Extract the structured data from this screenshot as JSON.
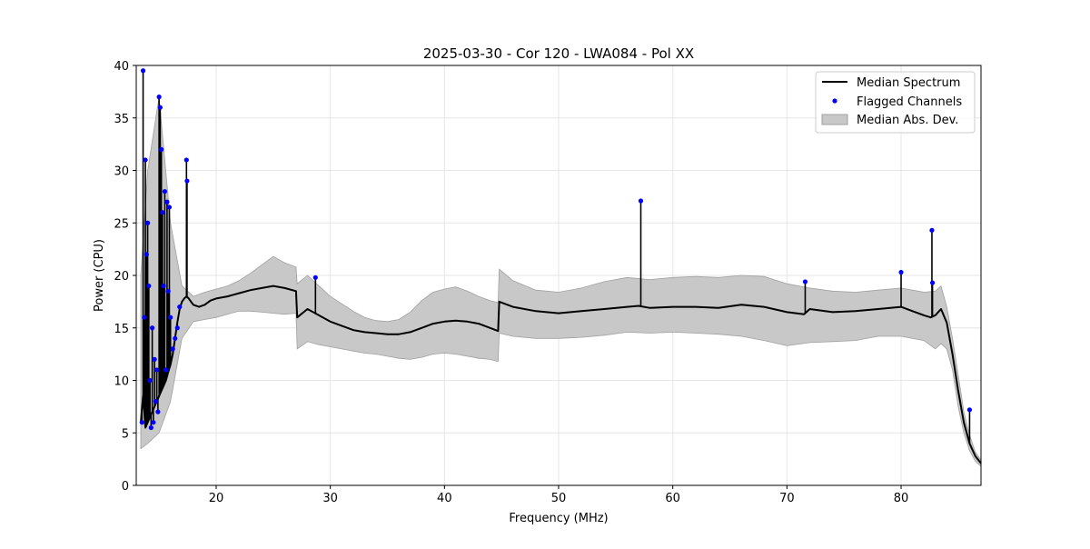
{
  "chart_data": {
    "type": "line",
    "title": "2025-03-30 - Cor 120 - LWA084 - Pol XX",
    "xlabel": "Frequency (MHz)",
    "ylabel": "Power (CPU)",
    "xlim": [
      13,
      87
    ],
    "ylim": [
      0,
      40
    ],
    "x_ticks": [
      20,
      30,
      40,
      50,
      60,
      70,
      80
    ],
    "y_ticks": [
      0,
      5,
      10,
      15,
      20,
      25,
      30,
      35,
      40
    ],
    "grid": true,
    "legend": {
      "placement": "top-right",
      "entries": [
        "Median Spectrum",
        "Flagged Channels",
        "Median Abs. Dev."
      ]
    },
    "colors": {
      "median": "#000000",
      "flagged": "#0000ff",
      "mad_fill": "#c8c8c8",
      "mad_edge": "#a0a0a0"
    },
    "series": [
      {
        "name": "Median Spectrum",
        "x": [
          13.4,
          13.6,
          13.8,
          14.0,
          14.2,
          14.4,
          14.6,
          14.8,
          15.0,
          15.2,
          15.4,
          15.6,
          15.8,
          16.0,
          16.2,
          16.4,
          16.6,
          16.8,
          17.0,
          17.2,
          17.4,
          17.6,
          17.8,
          18.0,
          18.5,
          19.0,
          19.5,
          20.0,
          21.0,
          22.0,
          23.0,
          24.0,
          25.0,
          26.0,
          27.0,
          27.1,
          28.0,
          29.0,
          30.0,
          31.0,
          32.0,
          33.0,
          34.0,
          35.0,
          36.0,
          37.0,
          38.0,
          39.0,
          40.0,
          41.0,
          42.0,
          43.0,
          44.0,
          44.7,
          44.8,
          46.0,
          48.0,
          50.0,
          52.0,
          54.0,
          56.0,
          57.0,
          58.0,
          60.0,
          62.0,
          64.0,
          66.0,
          68.0,
          70.0,
          71.5,
          72.0,
          74.0,
          76.0,
          78.0,
          80.0,
          81.0,
          82.0,
          82.6,
          83.0,
          83.5,
          84.0,
          84.5,
          85.0,
          85.5,
          86.0,
          86.5,
          87.0
        ],
        "values": [
          6.0,
          8.5,
          5.5,
          6.0,
          6.5,
          7.0,
          7.5,
          8.0,
          8.5,
          9.0,
          9.5,
          10.0,
          10.8,
          11.5,
          12.5,
          14.0,
          15.5,
          16.8,
          17.5,
          17.8,
          18.0,
          17.8,
          17.5,
          17.2,
          17.0,
          17.2,
          17.6,
          17.8,
          18.0,
          18.3,
          18.6,
          18.8,
          19.0,
          18.8,
          18.5,
          16.0,
          16.8,
          16.2,
          15.6,
          15.2,
          14.8,
          14.6,
          14.5,
          14.4,
          14.4,
          14.6,
          15.0,
          15.4,
          15.6,
          15.7,
          15.6,
          15.4,
          15.0,
          14.7,
          17.5,
          17.0,
          16.6,
          16.4,
          16.6,
          16.8,
          17.0,
          17.1,
          16.9,
          17.0,
          17.0,
          16.9,
          17.2,
          17.0,
          16.5,
          16.3,
          16.8,
          16.5,
          16.6,
          16.8,
          17.0,
          16.6,
          16.2,
          16.0,
          16.2,
          16.8,
          15.5,
          12.5,
          9.0,
          6.0,
          4.0,
          2.8,
          2.1
        ]
      },
      {
        "name": "Median Abs. Dev.",
        "x": [
          13.4,
          14.0,
          15.0,
          16.0,
          17.0,
          18.0,
          19.0,
          20.0,
          21.0,
          22.0,
          23.0,
          24.0,
          25.0,
          26.0,
          27.0,
          27.1,
          28.0,
          29.0,
          30.0,
          31.0,
          32.0,
          33.0,
          34.0,
          35.0,
          36.0,
          37.0,
          38.0,
          39.0,
          40.0,
          41.0,
          42.0,
          43.0,
          44.0,
          44.7,
          44.8,
          46.0,
          48.0,
          50.0,
          52.0,
          54.0,
          56.0,
          58.0,
          60.0,
          62.0,
          64.0,
          66.0,
          68.0,
          70.0,
          72.0,
          74.0,
          76.0,
          78.0,
          80.0,
          82.0,
          83.0,
          83.5,
          84.0,
          84.5,
          85.0,
          85.5,
          86.0,
          86.5,
          87.0
        ],
        "upper": [
          20.0,
          30.0,
          37.0,
          25.0,
          19.0,
          18.0,
          18.4,
          18.7,
          19.0,
          19.5,
          20.2,
          21.0,
          21.8,
          21.2,
          20.8,
          19.2,
          20.0,
          19.0,
          18.0,
          17.3,
          16.6,
          16.0,
          15.7,
          15.6,
          15.8,
          16.5,
          17.6,
          18.4,
          18.7,
          18.9,
          18.5,
          18.0,
          17.6,
          17.4,
          20.6,
          19.5,
          18.6,
          18.4,
          18.8,
          19.4,
          19.8,
          19.6,
          19.8,
          19.9,
          19.8,
          20.0,
          19.9,
          19.2,
          18.8,
          18.5,
          18.4,
          18.6,
          18.8,
          18.4,
          18.5,
          19.0,
          17.0,
          14.0,
          10.5,
          7.0,
          4.8,
          3.2,
          2.4
        ],
        "lower": [
          3.5,
          4.0,
          5.0,
          8.0,
          14.0,
          15.6,
          15.8,
          16.0,
          16.3,
          16.6,
          16.6,
          16.5,
          16.4,
          16.3,
          16.4,
          13.0,
          13.7,
          13.4,
          13.2,
          13.0,
          12.8,
          12.6,
          12.5,
          12.3,
          12.1,
          12.0,
          12.2,
          12.5,
          12.6,
          12.5,
          12.3,
          12.1,
          12.0,
          11.8,
          14.5,
          14.2,
          14.0,
          14.0,
          14.1,
          14.3,
          14.6,
          14.5,
          14.6,
          14.5,
          14.4,
          14.2,
          13.8,
          13.3,
          13.6,
          13.7,
          13.8,
          14.2,
          14.2,
          13.8,
          13.0,
          13.5,
          13.0,
          11.0,
          7.5,
          5.0,
          3.3,
          2.3,
          1.8
        ]
      },
      {
        "name": "Flagged Channels",
        "x": [
          13.5,
          13.6,
          13.7,
          13.8,
          13.9,
          14.0,
          14.1,
          14.2,
          14.3,
          14.4,
          14.5,
          14.6,
          14.7,
          14.8,
          14.9,
          15.0,
          15.1,
          15.2,
          15.3,
          15.4,
          15.5,
          15.6,
          15.7,
          15.8,
          15.9,
          16.0,
          16.2,
          16.4,
          16.6,
          16.8,
          17.4,
          17.45,
          28.7,
          57.2,
          71.6,
          80.0,
          82.7,
          82.75,
          86.0
        ],
        "values": [
          6.0,
          39.5,
          16.0,
          31.0,
          22.0,
          25.0,
          19.0,
          10.0,
          5.5,
          15.0,
          6.0,
          12.0,
          8.0,
          11.0,
          7.0,
          37.0,
          36.0,
          32.0,
          26.0,
          19.0,
          28.0,
          11.0,
          27.0,
          18.5,
          26.5,
          16.0,
          13.0,
          14.0,
          15.0,
          17.0,
          31.0,
          29.0,
          19.8,
          27.1,
          19.4,
          20.3,
          24.3,
          19.3,
          7.2
        ]
      }
    ]
  }
}
